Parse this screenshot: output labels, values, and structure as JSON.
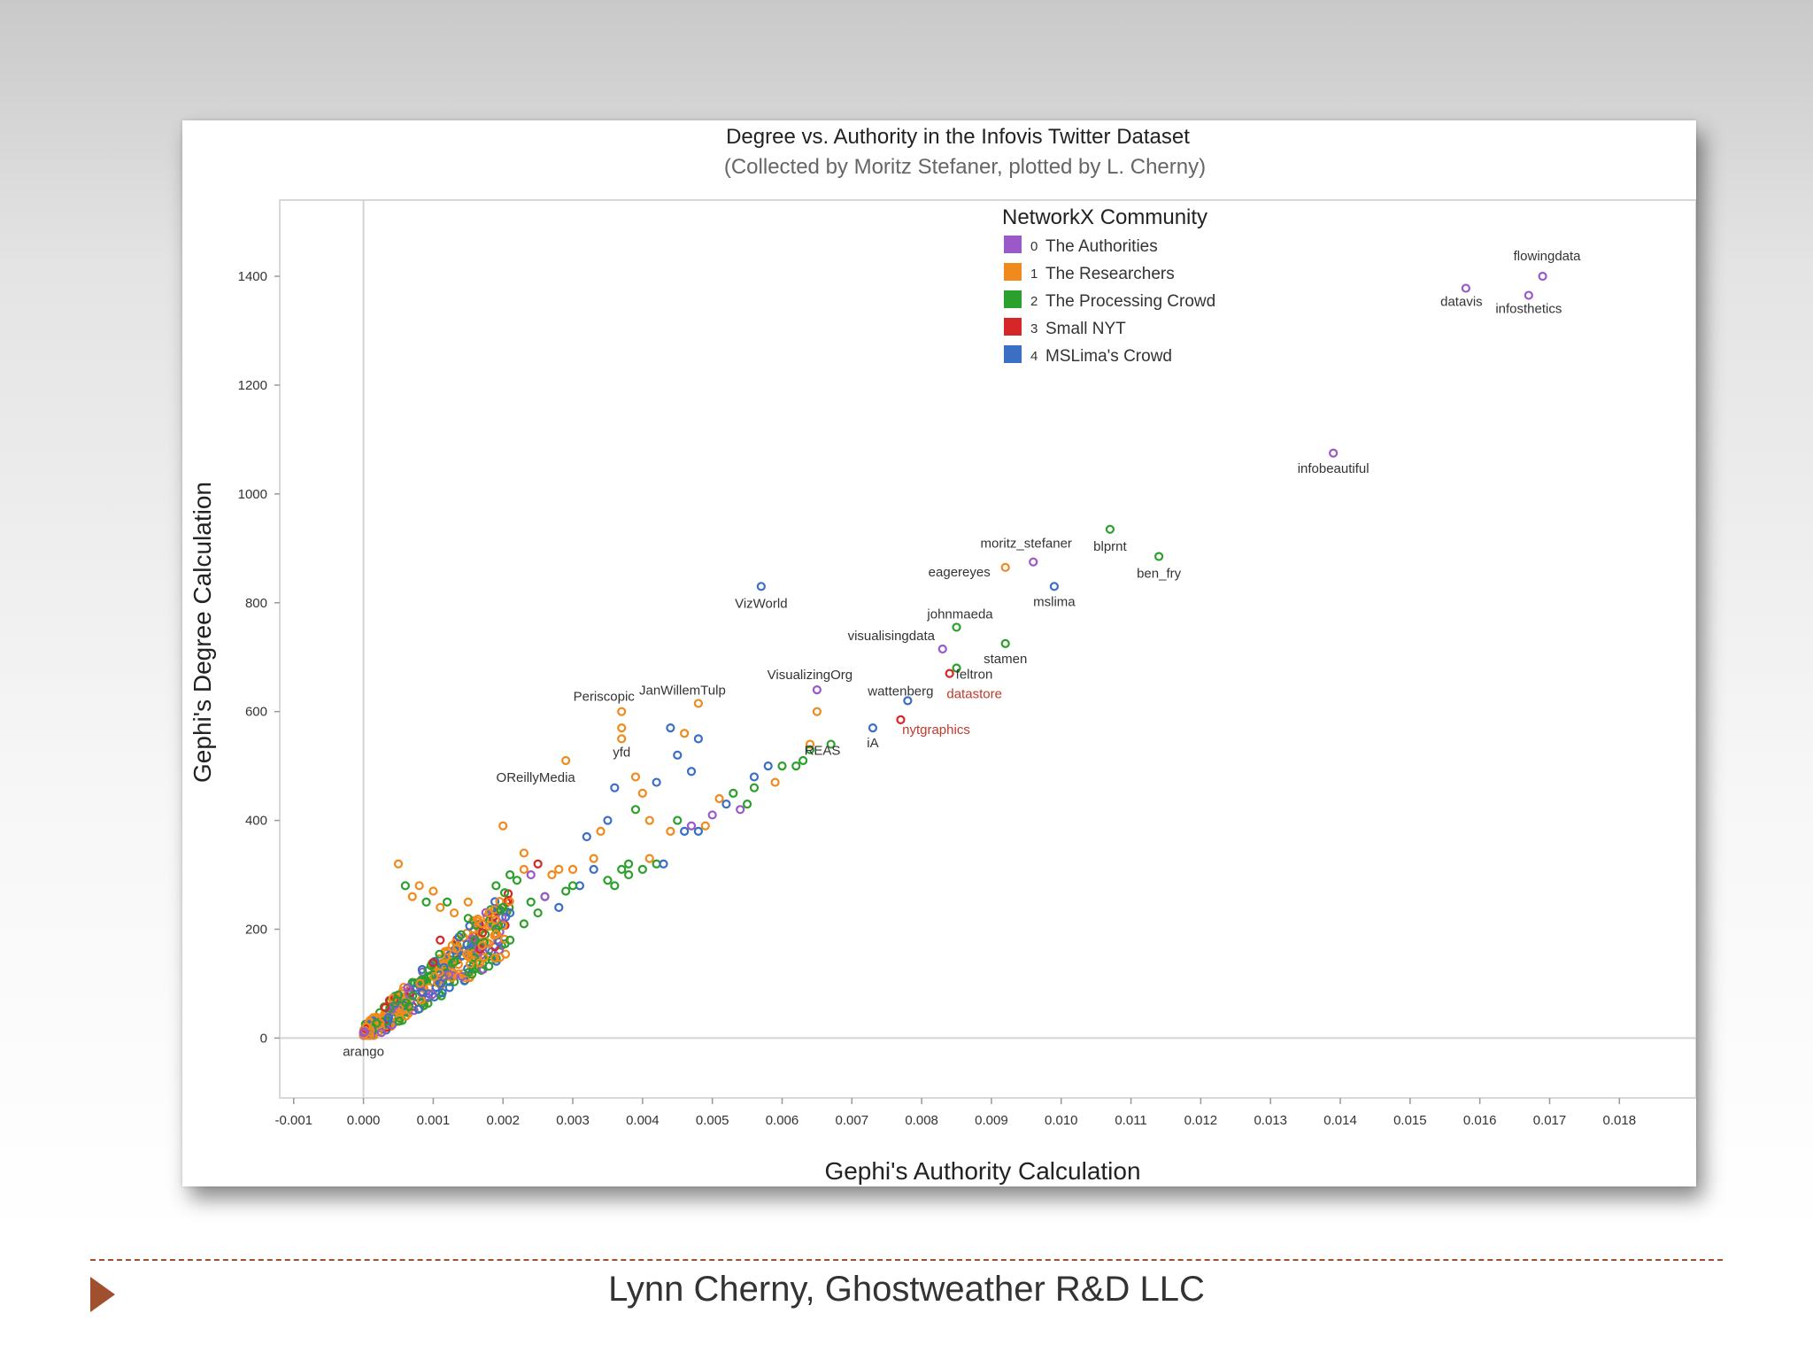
{
  "footer": {
    "text": "Lynn Cherny, Ghostweather R&D LLC"
  },
  "colors": {
    "authorities": "#9b59c7",
    "researchers": "#f08a1c",
    "processing": "#2ca02c",
    "small_nyt": "#d62728",
    "mslima": "#3a6fc4",
    "footer_accent": "#a0502e"
  },
  "chart_data": {
    "type": "scatter",
    "title": "Degree vs. Authority in the Infovis Twitter Dataset",
    "subtitle": "(Collected by Moritz Stefaner, plotted by L. Cherny)",
    "xlabel": "Gephi's Authority Calculation",
    "ylabel": "Gephi's Degree Calculation",
    "xlim": [
      -0.0012,
      0.0191
    ],
    "ylim": [
      -110,
      1540
    ],
    "xticks": [
      "-0.001",
      "0.000",
      "0.001",
      "0.002",
      "0.003",
      "0.004",
      "0.005",
      "0.006",
      "0.007",
      "0.008",
      "0.009",
      "0.010",
      "0.011",
      "0.012",
      "0.013",
      "0.014",
      "0.015",
      "0.016",
      "0.017",
      "0.018"
    ],
    "yticks": [
      "0",
      "200",
      "400",
      "600",
      "800",
      "1000",
      "1200",
      "1400"
    ],
    "legend": {
      "title": "NetworkX Community",
      "position": "top-center",
      "entries": [
        {
          "id": 0,
          "prefix": "0",
          "name": "The Authorities",
          "color": "#9b59c7"
        },
        {
          "id": 1,
          "prefix": "1",
          "name": "The Researchers",
          "color": "#f08a1c"
        },
        {
          "id": 2,
          "prefix": "2",
          "name": "The Processing Crowd",
          "color": "#2ca02c"
        },
        {
          "id": 3,
          "prefix": "3",
          "name": "Small NYT",
          "color": "#d62728"
        },
        {
          "id": 4,
          "prefix": "4",
          "name": "MSLima's Crowd",
          "color": "#3a6fc4"
        }
      ]
    },
    "labeled_points": [
      {
        "label": "flowingdata",
        "x": 0.0169,
        "y": 1400,
        "c": 0
      },
      {
        "label": "datavis",
        "x": 0.0158,
        "y": 1378,
        "c": 0
      },
      {
        "label": "infosthetics",
        "x": 0.0167,
        "y": 1365,
        "c": 0
      },
      {
        "label": "infobeautiful",
        "x": 0.0139,
        "y": 1075,
        "c": 0
      },
      {
        "label": "blprnt",
        "x": 0.0107,
        "y": 935,
        "c": 2
      },
      {
        "label": "moritz_stefaner",
        "x": 0.0096,
        "y": 875,
        "c": 0
      },
      {
        "label": "eagereyes",
        "x": 0.0092,
        "y": 865,
        "c": 1
      },
      {
        "label": "ben_fry",
        "x": 0.0114,
        "y": 885,
        "c": 2
      },
      {
        "label": "mslima",
        "x": 0.0099,
        "y": 830,
        "c": 4
      },
      {
        "label": "VizWorld",
        "x": 0.0057,
        "y": 830,
        "c": 4
      },
      {
        "label": "johnmaeda",
        "x": 0.0085,
        "y": 755,
        "c": 2
      },
      {
        "label": "visualisingdata",
        "x": 0.0083,
        "y": 715,
        "c": 0
      },
      {
        "label": "stamen",
        "x": 0.0092,
        "y": 725,
        "c": 2
      },
      {
        "label": "feltron",
        "x": 0.0085,
        "y": 680,
        "c": 2
      },
      {
        "label": "VisualizingOrg",
        "x": 0.0065,
        "y": 640,
        "c": 0
      },
      {
        "label": "datastore",
        "x": 0.0084,
        "y": 670,
        "c": 3
      },
      {
        "label": "wattenberg",
        "x": 0.0078,
        "y": 620,
        "c": 4
      },
      {
        "label": "Periscopic",
        "x": 0.0037,
        "y": 600,
        "c": 1
      },
      {
        "label": "JanWillemTulp",
        "x": 0.0048,
        "y": 615,
        "c": 1
      },
      {
        "label": "nytgraphics",
        "x": 0.0077,
        "y": 585,
        "c": 3
      },
      {
        "label": "REAS",
        "x": 0.0064,
        "y": 530,
        "c": 2
      },
      {
        "label": "iA",
        "x": 0.0073,
        "y": 570,
        "c": 4
      },
      {
        "label": "yfd",
        "x": 0.0037,
        "y": 550,
        "c": 1
      },
      {
        "label": "OReillyMedia",
        "x": 0.0029,
        "y": 510,
        "c": 1
      },
      {
        "label": "arango",
        "x": 0.0,
        "y": 10,
        "c": 0
      }
    ],
    "points": [
      [
        0.0005,
        320,
        1
      ],
      [
        0.0015,
        250,
        1
      ],
      [
        0.002,
        390,
        1
      ],
      [
        0.0023,
        340,
        1
      ],
      [
        0.0025,
        320,
        3
      ],
      [
        0.0028,
        310,
        1
      ],
      [
        0.003,
        310,
        1
      ],
      [
        0.0032,
        370,
        4
      ],
      [
        0.0034,
        380,
        1
      ],
      [
        0.0035,
        400,
        4
      ],
      [
        0.0037,
        310,
        2
      ],
      [
        0.0038,
        320,
        2
      ],
      [
        0.004,
        310,
        2
      ],
      [
        0.0042,
        320,
        2
      ],
      [
        0.0041,
        330,
        1
      ],
      [
        0.0043,
        320,
        4
      ],
      [
        0.0044,
        380,
        1
      ],
      [
        0.0045,
        400,
        2
      ],
      [
        0.0046,
        380,
        4
      ],
      [
        0.0047,
        390,
        0
      ],
      [
        0.0048,
        380,
        4
      ],
      [
        0.0049,
        390,
        1
      ],
      [
        0.005,
        410,
        0
      ],
      [
        0.0051,
        440,
        1
      ],
      [
        0.0052,
        430,
        4
      ],
      [
        0.0053,
        450,
        2
      ],
      [
        0.0054,
        420,
        0
      ],
      [
        0.0055,
        430,
        2
      ],
      [
        0.0056,
        460,
        2
      ],
      [
        0.0056,
        480,
        4
      ],
      [
        0.0058,
        500,
        4
      ],
      [
        0.0059,
        470,
        1
      ],
      [
        0.006,
        500,
        2
      ],
      [
        0.0062,
        500,
        2
      ],
      [
        0.0063,
        510,
        2
      ],
      [
        0.0064,
        540,
        1
      ],
      [
        0.0065,
        600,
        1
      ],
      [
        0.0067,
        540,
        2
      ],
      [
        0.0033,
        310,
        4
      ],
      [
        0.0035,
        290,
        2
      ],
      [
        0.0036,
        280,
        2
      ],
      [
        0.0038,
        300,
        2
      ],
      [
        0.0031,
        280,
        4
      ],
      [
        0.0029,
        270,
        2
      ],
      [
        0.0026,
        260,
        2
      ],
      [
        0.0028,
        240,
        4
      ],
      [
        0.0025,
        230,
        2
      ],
      [
        0.0023,
        210,
        2
      ],
      [
        0.0021,
        230,
        4
      ],
      [
        0.0019,
        200,
        2
      ],
      [
        0.0017,
        210,
        1
      ],
      [
        0.0015,
        220,
        2
      ],
      [
        0.0013,
        230,
        1
      ],
      [
        0.0012,
        250,
        2
      ],
      [
        0.0011,
        240,
        1
      ],
      [
        0.001,
        270,
        1
      ],
      [
        0.0009,
        250,
        2
      ],
      [
        0.0008,
        280,
        1
      ],
      [
        0.0007,
        260,
        1
      ],
      [
        0.0006,
        280,
        2
      ],
      [
        0.0045,
        520,
        4
      ],
      [
        0.0047,
        490,
        4
      ],
      [
        0.0046,
        560,
        1
      ],
      [
        0.0048,
        550,
        4
      ],
      [
        0.0044,
        570,
        4
      ],
      [
        0.0037,
        570,
        1
      ],
      [
        0.0036,
        460,
        4
      ],
      [
        0.0039,
        480,
        1
      ],
      [
        0.004,
        450,
        1
      ],
      [
        0.0042,
        470,
        4
      ],
      [
        0.0041,
        400,
        1
      ],
      [
        0.0039,
        420,
        2
      ],
      [
        0.0019,
        280,
        2
      ],
      [
        0.0021,
        300,
        2
      ],
      [
        0.0023,
        310,
        1
      ],
      [
        0.0024,
        300,
        0
      ],
      [
        0.0022,
        290,
        2
      ],
      [
        0.0027,
        300,
        1
      ],
      [
        0.003,
        280,
        2
      ],
      [
        0.0033,
        330,
        1
      ],
      [
        0.0026,
        260,
        0
      ],
      [
        0.0024,
        250,
        2
      ],
      [
        0.002,
        240,
        2
      ],
      [
        0.0018,
        230,
        1
      ],
      [
        0.0016,
        180,
        2
      ],
      [
        0.0014,
        190,
        2
      ],
      [
        0.0012,
        160,
        1
      ],
      [
        0.0011,
        180,
        3
      ],
      [
        0.0017,
        170,
        1
      ],
      [
        0.0019,
        190,
        1
      ],
      [
        0.0021,
        180,
        2
      ],
      [
        0.0015,
        150,
        1
      ],
      [
        0.0013,
        140,
        2
      ]
    ]
  }
}
